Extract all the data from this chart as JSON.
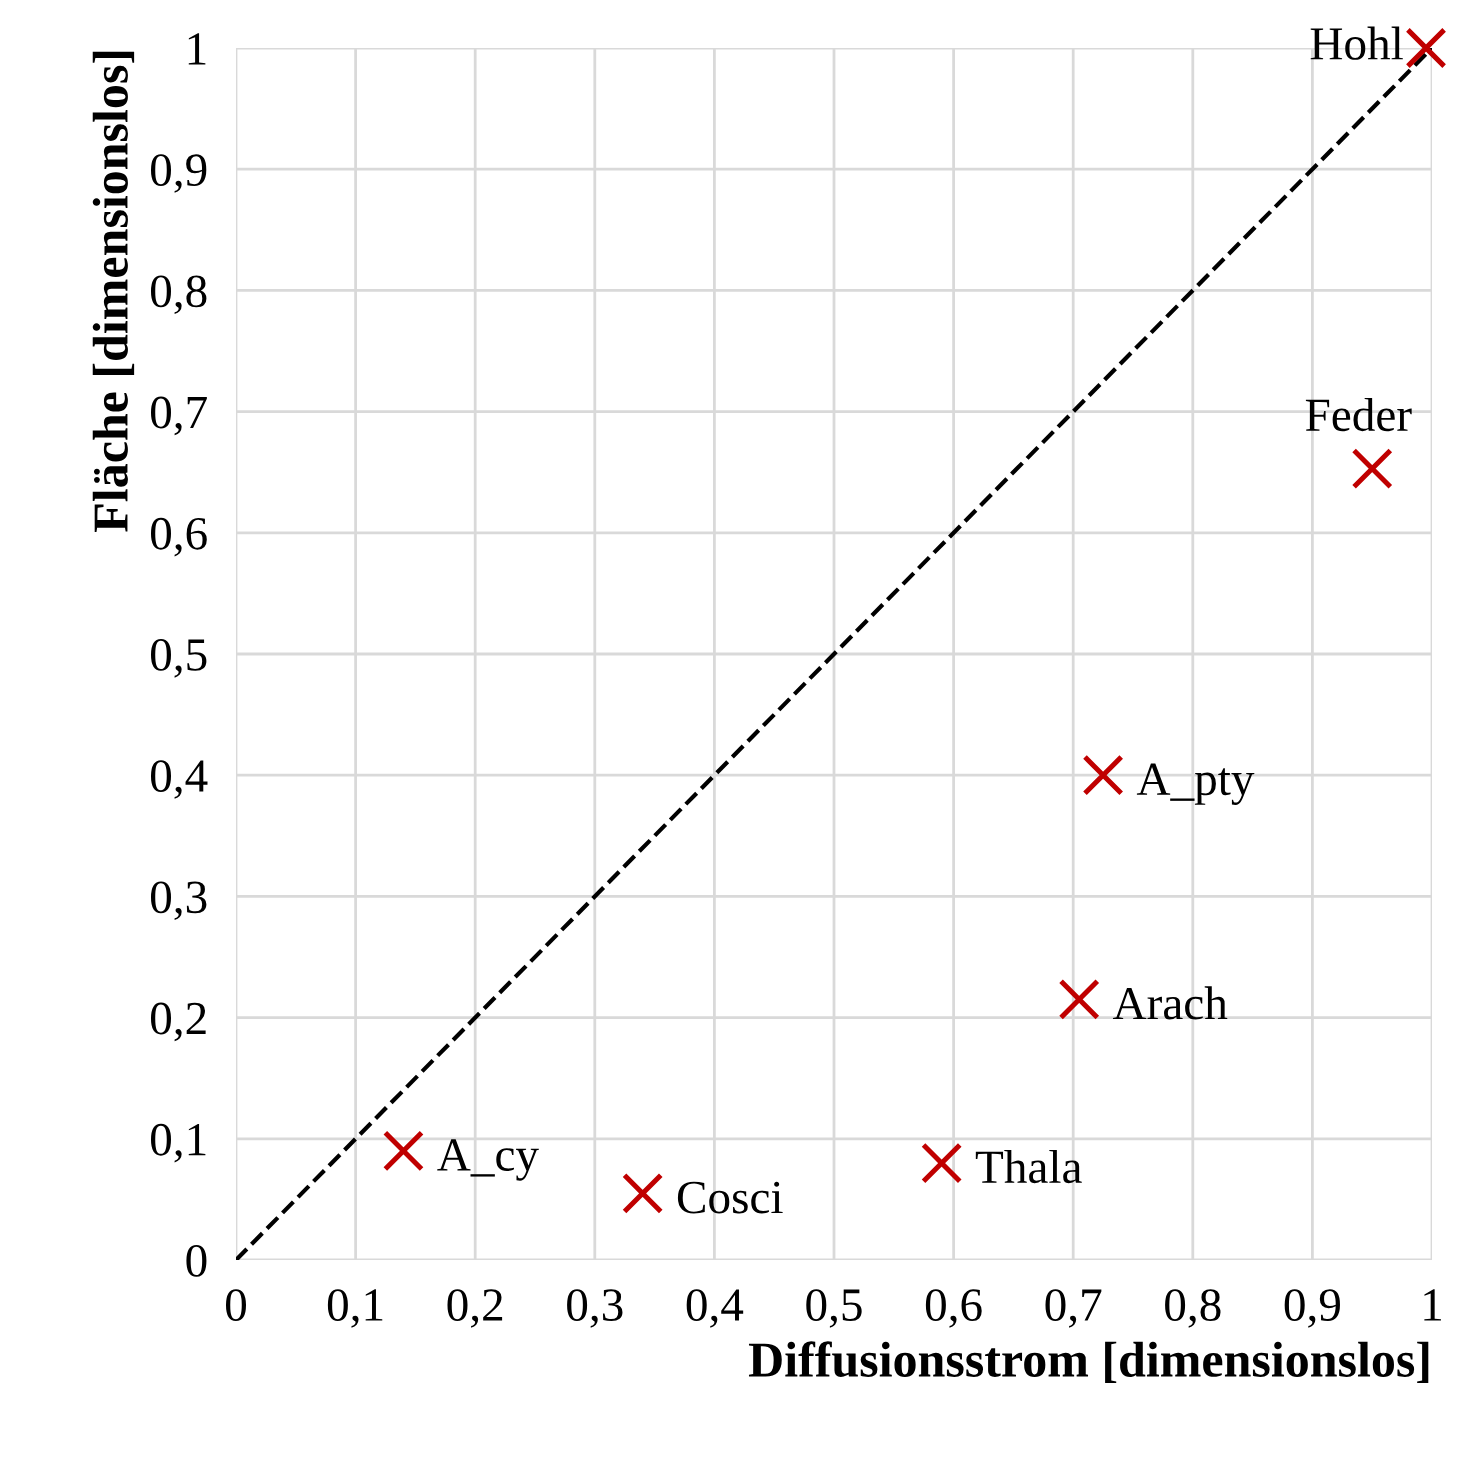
{
  "chart_data": {
    "type": "scatter",
    "xlabel": "Diffusionsstrom [dimensionslos]",
    "ylabel": "Fläche [dimensionslos]",
    "xlim": [
      0,
      1
    ],
    "ylim": [
      0,
      1
    ],
    "xticks": [
      0,
      {
        "value": 0.1,
        "label": "0,1"
      },
      {
        "value": 0.2,
        "label": "0,2"
      },
      {
        "value": 0.3,
        "label": "0,3"
      },
      {
        "value": 0.4,
        "label": "0,4"
      },
      {
        "value": 0.5,
        "label": "0,5"
      },
      {
        "value": 0.6,
        "label": "0,6"
      },
      {
        "value": 0.7,
        "label": "0,7"
      },
      {
        "value": 0.8,
        "label": "0,8"
      },
      {
        "value": 0.9,
        "label": "0,9"
      },
      1
    ],
    "yticks": [
      0,
      {
        "value": 0.1,
        "label": "0,1"
      },
      {
        "value": 0.2,
        "label": "0,2"
      },
      {
        "value": 0.3,
        "label": "0,3"
      },
      {
        "value": 0.4,
        "label": "0,4"
      },
      {
        "value": 0.5,
        "label": "0,5"
      },
      {
        "value": 0.6,
        "label": "0,6"
      },
      {
        "value": 0.7,
        "label": "0,7"
      },
      {
        "value": 0.8,
        "label": "0,8"
      },
      {
        "value": 0.9,
        "label": "0,9"
      },
      1
    ],
    "grid": true,
    "series": [
      {
        "color": "#c00000",
        "marker": "cross",
        "x": [
          0.14,
          0.34,
          0.59,
          0.705,
          0.725,
          0.95,
          0.995
        ],
        "values": [
          0.09,
          0.055,
          0.08,
          0.215,
          0.4,
          0.653,
          1.0
        ]
      },
      {
        "type": "line",
        "color": "#000000",
        "line_style": "dashed",
        "marker": "none",
        "x": [
          0,
          1
        ],
        "values": [
          0,
          1
        ]
      }
    ],
    "annotations": [
      {
        "text": "A_cy",
        "x": 0.14,
        "y": 0.09
      },
      {
        "text": "Cosci",
        "x": 0.34,
        "y": 0.055
      },
      {
        "text": "Thala",
        "x": 0.59,
        "y": 0.08
      },
      {
        "text": "Arach",
        "x": 0.705,
        "y": 0.215
      },
      {
        "text": "A_pty",
        "x": 0.725,
        "y": 0.4
      },
      {
        "text": "Feder",
        "x": 0.95,
        "y": 0.653
      },
      {
        "text": "Hohl",
        "x": 0.995,
        "y": 1.0
      }
    ]
  }
}
